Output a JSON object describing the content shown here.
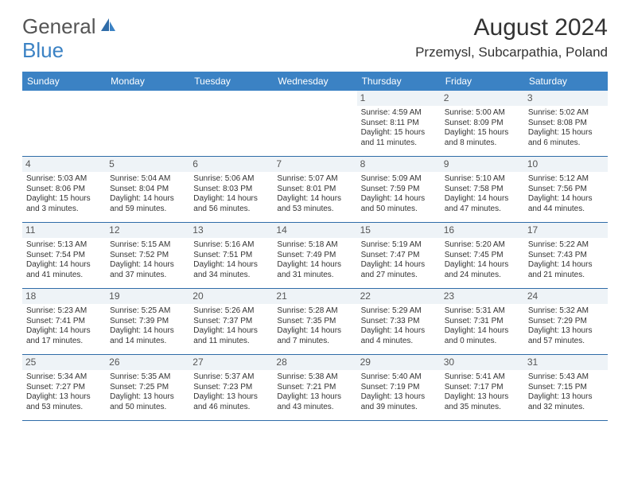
{
  "logo": {
    "general": "General",
    "blue": "Blue"
  },
  "title": "August 2024",
  "location": "Przemysl, Subcarpathia, Poland",
  "colors": {
    "accent": "#3b82c4",
    "header_text": "#ffffff",
    "body_text": "#333333",
    "daynum_bg": "#eef3f7",
    "rule": "#2f6ca8"
  },
  "day_headers": [
    "Sunday",
    "Monday",
    "Tuesday",
    "Wednesday",
    "Thursday",
    "Friday",
    "Saturday"
  ],
  "weeks": [
    [
      {
        "empty": true
      },
      {
        "empty": true
      },
      {
        "empty": true
      },
      {
        "empty": true
      },
      {
        "num": "1",
        "sunrise": "Sunrise: 4:59 AM",
        "sunset": "Sunset: 8:11 PM",
        "day1": "Daylight: 15 hours",
        "day2": "and 11 minutes."
      },
      {
        "num": "2",
        "sunrise": "Sunrise: 5:00 AM",
        "sunset": "Sunset: 8:09 PM",
        "day1": "Daylight: 15 hours",
        "day2": "and 8 minutes."
      },
      {
        "num": "3",
        "sunrise": "Sunrise: 5:02 AM",
        "sunset": "Sunset: 8:08 PM",
        "day1": "Daylight: 15 hours",
        "day2": "and 6 minutes."
      }
    ],
    [
      {
        "num": "4",
        "sunrise": "Sunrise: 5:03 AM",
        "sunset": "Sunset: 8:06 PM",
        "day1": "Daylight: 15 hours",
        "day2": "and 3 minutes."
      },
      {
        "num": "5",
        "sunrise": "Sunrise: 5:04 AM",
        "sunset": "Sunset: 8:04 PM",
        "day1": "Daylight: 14 hours",
        "day2": "and 59 minutes."
      },
      {
        "num": "6",
        "sunrise": "Sunrise: 5:06 AM",
        "sunset": "Sunset: 8:03 PM",
        "day1": "Daylight: 14 hours",
        "day2": "and 56 minutes."
      },
      {
        "num": "7",
        "sunrise": "Sunrise: 5:07 AM",
        "sunset": "Sunset: 8:01 PM",
        "day1": "Daylight: 14 hours",
        "day2": "and 53 minutes."
      },
      {
        "num": "8",
        "sunrise": "Sunrise: 5:09 AM",
        "sunset": "Sunset: 7:59 PM",
        "day1": "Daylight: 14 hours",
        "day2": "and 50 minutes."
      },
      {
        "num": "9",
        "sunrise": "Sunrise: 5:10 AM",
        "sunset": "Sunset: 7:58 PM",
        "day1": "Daylight: 14 hours",
        "day2": "and 47 minutes."
      },
      {
        "num": "10",
        "sunrise": "Sunrise: 5:12 AM",
        "sunset": "Sunset: 7:56 PM",
        "day1": "Daylight: 14 hours",
        "day2": "and 44 minutes."
      }
    ],
    [
      {
        "num": "11",
        "sunrise": "Sunrise: 5:13 AM",
        "sunset": "Sunset: 7:54 PM",
        "day1": "Daylight: 14 hours",
        "day2": "and 41 minutes."
      },
      {
        "num": "12",
        "sunrise": "Sunrise: 5:15 AM",
        "sunset": "Sunset: 7:52 PM",
        "day1": "Daylight: 14 hours",
        "day2": "and 37 minutes."
      },
      {
        "num": "13",
        "sunrise": "Sunrise: 5:16 AM",
        "sunset": "Sunset: 7:51 PM",
        "day1": "Daylight: 14 hours",
        "day2": "and 34 minutes."
      },
      {
        "num": "14",
        "sunrise": "Sunrise: 5:18 AM",
        "sunset": "Sunset: 7:49 PM",
        "day1": "Daylight: 14 hours",
        "day2": "and 31 minutes."
      },
      {
        "num": "15",
        "sunrise": "Sunrise: 5:19 AM",
        "sunset": "Sunset: 7:47 PM",
        "day1": "Daylight: 14 hours",
        "day2": "and 27 minutes."
      },
      {
        "num": "16",
        "sunrise": "Sunrise: 5:20 AM",
        "sunset": "Sunset: 7:45 PM",
        "day1": "Daylight: 14 hours",
        "day2": "and 24 minutes."
      },
      {
        "num": "17",
        "sunrise": "Sunrise: 5:22 AM",
        "sunset": "Sunset: 7:43 PM",
        "day1": "Daylight: 14 hours",
        "day2": "and 21 minutes."
      }
    ],
    [
      {
        "num": "18",
        "sunrise": "Sunrise: 5:23 AM",
        "sunset": "Sunset: 7:41 PM",
        "day1": "Daylight: 14 hours",
        "day2": "and 17 minutes."
      },
      {
        "num": "19",
        "sunrise": "Sunrise: 5:25 AM",
        "sunset": "Sunset: 7:39 PM",
        "day1": "Daylight: 14 hours",
        "day2": "and 14 minutes."
      },
      {
        "num": "20",
        "sunrise": "Sunrise: 5:26 AM",
        "sunset": "Sunset: 7:37 PM",
        "day1": "Daylight: 14 hours",
        "day2": "and 11 minutes."
      },
      {
        "num": "21",
        "sunrise": "Sunrise: 5:28 AM",
        "sunset": "Sunset: 7:35 PM",
        "day1": "Daylight: 14 hours",
        "day2": "and 7 minutes."
      },
      {
        "num": "22",
        "sunrise": "Sunrise: 5:29 AM",
        "sunset": "Sunset: 7:33 PM",
        "day1": "Daylight: 14 hours",
        "day2": "and 4 minutes."
      },
      {
        "num": "23",
        "sunrise": "Sunrise: 5:31 AM",
        "sunset": "Sunset: 7:31 PM",
        "day1": "Daylight: 14 hours",
        "day2": "and 0 minutes."
      },
      {
        "num": "24",
        "sunrise": "Sunrise: 5:32 AM",
        "sunset": "Sunset: 7:29 PM",
        "day1": "Daylight: 13 hours",
        "day2": "and 57 minutes."
      }
    ],
    [
      {
        "num": "25",
        "sunrise": "Sunrise: 5:34 AM",
        "sunset": "Sunset: 7:27 PM",
        "day1": "Daylight: 13 hours",
        "day2": "and 53 minutes."
      },
      {
        "num": "26",
        "sunrise": "Sunrise: 5:35 AM",
        "sunset": "Sunset: 7:25 PM",
        "day1": "Daylight: 13 hours",
        "day2": "and 50 minutes."
      },
      {
        "num": "27",
        "sunrise": "Sunrise: 5:37 AM",
        "sunset": "Sunset: 7:23 PM",
        "day1": "Daylight: 13 hours",
        "day2": "and 46 minutes."
      },
      {
        "num": "28",
        "sunrise": "Sunrise: 5:38 AM",
        "sunset": "Sunset: 7:21 PM",
        "day1": "Daylight: 13 hours",
        "day2": "and 43 minutes."
      },
      {
        "num": "29",
        "sunrise": "Sunrise: 5:40 AM",
        "sunset": "Sunset: 7:19 PM",
        "day1": "Daylight: 13 hours",
        "day2": "and 39 minutes."
      },
      {
        "num": "30",
        "sunrise": "Sunrise: 5:41 AM",
        "sunset": "Sunset: 7:17 PM",
        "day1": "Daylight: 13 hours",
        "day2": "and 35 minutes."
      },
      {
        "num": "31",
        "sunrise": "Sunrise: 5:43 AM",
        "sunset": "Sunset: 7:15 PM",
        "day1": "Daylight: 13 hours",
        "day2": "and 32 minutes."
      }
    ]
  ]
}
